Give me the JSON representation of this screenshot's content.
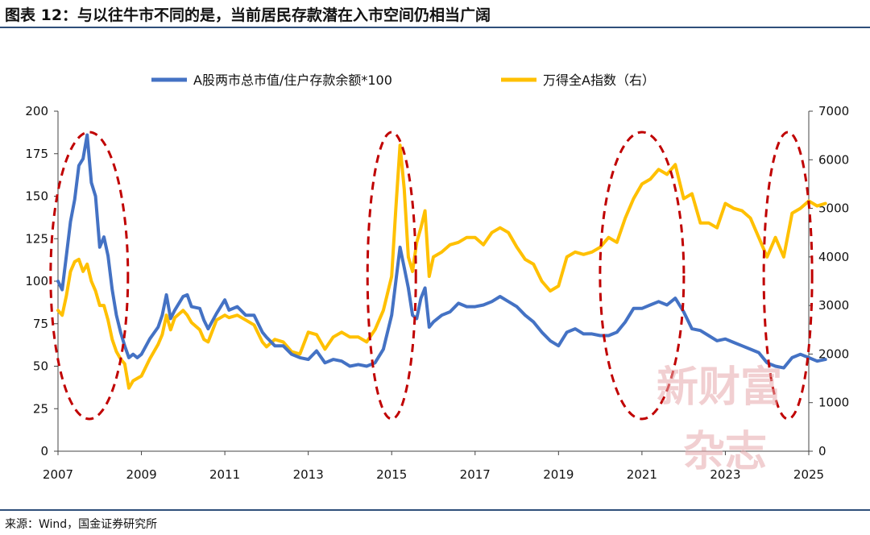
{
  "title": "图表 12：与以往牛市不同的是，当前居民存款潜在入市空间仍相当广阔",
  "source": "来源：Wind，国金证券研究所",
  "watermark": {
    "line1": "新财富",
    "line2": "杂志"
  },
  "colors": {
    "series1": "#4472C4",
    "series2": "#FFC000",
    "ellipse": "#C00000"
  },
  "chart_data": {
    "type": "line",
    "x_ticks": [
      "2007",
      "2009",
      "2011",
      "2013",
      "2015",
      "2017",
      "2019",
      "2021",
      "2023",
      "2025"
    ],
    "xlim": [
      2007.0,
      2025.0
    ],
    "y_left": {
      "lim": [
        0,
        200
      ],
      "ticks": [
        "0",
        "25",
        "50",
        "75",
        "100",
        "125",
        "150",
        "175",
        "200"
      ]
    },
    "y_right": {
      "lim": [
        0,
        7000
      ],
      "ticks": [
        "0",
        "1000",
        "2000",
        "3000",
        "4000",
        "5000",
        "6000",
        "7000"
      ]
    },
    "ellipse_centers_year": [
      2007.75,
      2015.0,
      2021.0,
      2024.5
    ],
    "series": [
      {
        "name": "A股两市总市值/住户存款余额*100",
        "axis": "left",
        "color": "#4472C4",
        "points": [
          [
            2007.0,
            100
          ],
          [
            2007.1,
            95
          ],
          [
            2007.2,
            115
          ],
          [
            2007.3,
            135
          ],
          [
            2007.4,
            148
          ],
          [
            2007.5,
            168
          ],
          [
            2007.6,
            172
          ],
          [
            2007.7,
            186
          ],
          [
            2007.8,
            158
          ],
          [
            2007.9,
            150
          ],
          [
            2008.0,
            120
          ],
          [
            2008.1,
            126
          ],
          [
            2008.2,
            115
          ],
          [
            2008.3,
            95
          ],
          [
            2008.4,
            80
          ],
          [
            2008.5,
            70
          ],
          [
            2008.6,
            62
          ],
          [
            2008.7,
            55
          ],
          [
            2008.8,
            57
          ],
          [
            2008.9,
            55
          ],
          [
            2009.0,
            57
          ],
          [
            2009.2,
            66
          ],
          [
            2009.4,
            73
          ],
          [
            2009.5,
            80
          ],
          [
            2009.6,
            92
          ],
          [
            2009.7,
            78
          ],
          [
            2009.8,
            83
          ],
          [
            2010.0,
            91
          ],
          [
            2010.1,
            92
          ],
          [
            2010.2,
            85
          ],
          [
            2010.4,
            84
          ],
          [
            2010.5,
            77
          ],
          [
            2010.6,
            72
          ],
          [
            2010.8,
            81
          ],
          [
            2011.0,
            89
          ],
          [
            2011.1,
            83
          ],
          [
            2011.3,
            85
          ],
          [
            2011.5,
            80
          ],
          [
            2011.7,
            80
          ],
          [
            2011.9,
            70
          ],
          [
            2012.0,
            67
          ],
          [
            2012.2,
            62
          ],
          [
            2012.4,
            62
          ],
          [
            2012.6,
            57
          ],
          [
            2012.8,
            55
          ],
          [
            2013.0,
            54
          ],
          [
            2013.2,
            59
          ],
          [
            2013.4,
            52
          ],
          [
            2013.6,
            54
          ],
          [
            2013.8,
            53
          ],
          [
            2014.0,
            50
          ],
          [
            2014.2,
            51
          ],
          [
            2014.4,
            50
          ],
          [
            2014.6,
            52
          ],
          [
            2014.8,
            60
          ],
          [
            2015.0,
            80
          ],
          [
            2015.1,
            100
          ],
          [
            2015.2,
            120
          ],
          [
            2015.3,
            108
          ],
          [
            2015.4,
            96
          ],
          [
            2015.5,
            80
          ],
          [
            2015.6,
            78
          ],
          [
            2015.7,
            90
          ],
          [
            2015.8,
            96
          ],
          [
            2015.9,
            73
          ],
          [
            2016.0,
            76
          ],
          [
            2016.2,
            80
          ],
          [
            2016.4,
            82
          ],
          [
            2016.6,
            87
          ],
          [
            2016.8,
            85
          ],
          [
            2017.0,
            85
          ],
          [
            2017.2,
            86
          ],
          [
            2017.4,
            88
          ],
          [
            2017.6,
            91
          ],
          [
            2017.8,
            88
          ],
          [
            2018.0,
            85
          ],
          [
            2018.2,
            80
          ],
          [
            2018.4,
            76
          ],
          [
            2018.6,
            70
          ],
          [
            2018.8,
            65
          ],
          [
            2019.0,
            62
          ],
          [
            2019.2,
            70
          ],
          [
            2019.4,
            72
          ],
          [
            2019.6,
            69
          ],
          [
            2019.8,
            69
          ],
          [
            2020.0,
            68
          ],
          [
            2020.2,
            68
          ],
          [
            2020.4,
            70
          ],
          [
            2020.6,
            76
          ],
          [
            2020.8,
            84
          ],
          [
            2021.0,
            84
          ],
          [
            2021.2,
            86
          ],
          [
            2021.4,
            88
          ],
          [
            2021.6,
            86
          ],
          [
            2021.8,
            90
          ],
          [
            2022.0,
            82
          ],
          [
            2022.2,
            72
          ],
          [
            2022.4,
            71
          ],
          [
            2022.6,
            68
          ],
          [
            2022.8,
            65
          ],
          [
            2023.0,
            66
          ],
          [
            2023.2,
            64
          ],
          [
            2023.4,
            62
          ],
          [
            2023.6,
            60
          ],
          [
            2023.8,
            58
          ],
          [
            2024.0,
            52
          ],
          [
            2024.2,
            50
          ],
          [
            2024.4,
            49
          ],
          [
            2024.6,
            55
          ],
          [
            2024.8,
            57
          ],
          [
            2025.0,
            55
          ],
          [
            2025.2,
            53
          ],
          [
            2025.4,
            54
          ]
        ]
      },
      {
        "name": "万得全A指数（右）",
        "axis": "right",
        "color": "#FFC000",
        "points": [
          [
            2007.0,
            2900
          ],
          [
            2007.1,
            2800
          ],
          [
            2007.2,
            3200
          ],
          [
            2007.3,
            3700
          ],
          [
            2007.4,
            3900
          ],
          [
            2007.5,
            3950
          ],
          [
            2007.6,
            3700
          ],
          [
            2007.7,
            3850
          ],
          [
            2007.8,
            3500
          ],
          [
            2007.9,
            3300
          ],
          [
            2008.0,
            3000
          ],
          [
            2008.1,
            3000
          ],
          [
            2008.2,
            2700
          ],
          [
            2008.3,
            2300
          ],
          [
            2008.4,
            2050
          ],
          [
            2008.5,
            1900
          ],
          [
            2008.6,
            1800
          ],
          [
            2008.7,
            1300
          ],
          [
            2008.8,
            1450
          ],
          [
            2008.9,
            1500
          ],
          [
            2009.0,
            1550
          ],
          [
            2009.2,
            1900
          ],
          [
            2009.4,
            2200
          ],
          [
            2009.5,
            2400
          ],
          [
            2009.6,
            2800
          ],
          [
            2009.7,
            2500
          ],
          [
            2009.8,
            2750
          ],
          [
            2010.0,
            2900
          ],
          [
            2010.1,
            2800
          ],
          [
            2010.2,
            2650
          ],
          [
            2010.4,
            2500
          ],
          [
            2010.5,
            2300
          ],
          [
            2010.6,
            2250
          ],
          [
            2010.8,
            2700
          ],
          [
            2011.0,
            2800
          ],
          [
            2011.1,
            2750
          ],
          [
            2011.3,
            2800
          ],
          [
            2011.5,
            2700
          ],
          [
            2011.7,
            2600
          ],
          [
            2011.9,
            2250
          ],
          [
            2012.0,
            2150
          ],
          [
            2012.2,
            2300
          ],
          [
            2012.4,
            2250
          ],
          [
            2012.6,
            2050
          ],
          [
            2012.8,
            2000
          ],
          [
            2013.0,
            2450
          ],
          [
            2013.2,
            2400
          ],
          [
            2013.4,
            2100
          ],
          [
            2013.6,
            2350
          ],
          [
            2013.8,
            2450
          ],
          [
            2014.0,
            2350
          ],
          [
            2014.2,
            2350
          ],
          [
            2014.4,
            2250
          ],
          [
            2014.6,
            2500
          ],
          [
            2014.8,
            2900
          ],
          [
            2015.0,
            3600
          ],
          [
            2015.1,
            5000
          ],
          [
            2015.2,
            6300
          ],
          [
            2015.3,
            5400
          ],
          [
            2015.4,
            4000
          ],
          [
            2015.5,
            3700
          ],
          [
            2015.6,
            4300
          ],
          [
            2015.7,
            4600
          ],
          [
            2015.8,
            4950
          ],
          [
            2015.9,
            3600
          ],
          [
            2016.0,
            4000
          ],
          [
            2016.2,
            4100
          ],
          [
            2016.4,
            4250
          ],
          [
            2016.6,
            4300
          ],
          [
            2016.8,
            4400
          ],
          [
            2017.0,
            4400
          ],
          [
            2017.2,
            4250
          ],
          [
            2017.4,
            4500
          ],
          [
            2017.6,
            4600
          ],
          [
            2017.8,
            4500
          ],
          [
            2018.0,
            4200
          ],
          [
            2018.2,
            3950
          ],
          [
            2018.4,
            3850
          ],
          [
            2018.6,
            3500
          ],
          [
            2018.8,
            3300
          ],
          [
            2019.0,
            3400
          ],
          [
            2019.2,
            4000
          ],
          [
            2019.4,
            4100
          ],
          [
            2019.6,
            4050
          ],
          [
            2019.8,
            4100
          ],
          [
            2020.0,
            4200
          ],
          [
            2020.2,
            4400
          ],
          [
            2020.4,
            4300
          ],
          [
            2020.6,
            4800
          ],
          [
            2020.8,
            5200
          ],
          [
            2021.0,
            5500
          ],
          [
            2021.2,
            5600
          ],
          [
            2021.4,
            5800
          ],
          [
            2021.6,
            5700
          ],
          [
            2021.8,
            5900
          ],
          [
            2022.0,
            5200
          ],
          [
            2022.2,
            5300
          ],
          [
            2022.4,
            4700
          ],
          [
            2022.6,
            4700
          ],
          [
            2022.8,
            4600
          ],
          [
            2023.0,
            5100
          ],
          [
            2023.2,
            5000
          ],
          [
            2023.4,
            4950
          ],
          [
            2023.6,
            4800
          ],
          [
            2023.8,
            4400
          ],
          [
            2024.0,
            4000
          ],
          [
            2024.2,
            4400
          ],
          [
            2024.4,
            4000
          ],
          [
            2024.6,
            4900
          ],
          [
            2024.8,
            5000
          ],
          [
            2025.0,
            5150
          ],
          [
            2025.2,
            5050
          ],
          [
            2025.4,
            5100
          ]
        ]
      }
    ]
  }
}
